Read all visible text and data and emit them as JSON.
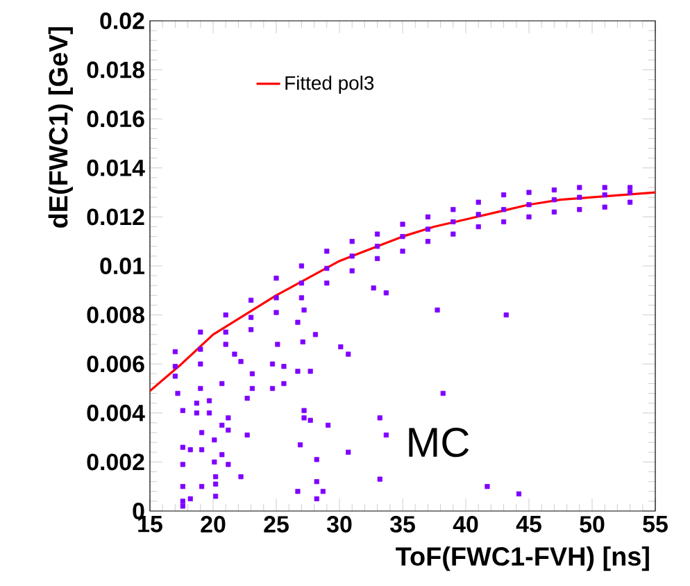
{
  "chart_data": {
    "type": "scatter",
    "xlabel": "ToF(FWC1-FVH) [ns]",
    "ylabel": "dE(FWC1) [GeV]",
    "xlim": [
      15,
      55
    ],
    "ylim": [
      0,
      0.02
    ],
    "xticks": [
      15,
      20,
      25,
      30,
      35,
      40,
      45,
      50,
      55
    ],
    "yticks": [
      0,
      0.002,
      0.004,
      0.006,
      0.008,
      0.01,
      0.012,
      0.014,
      0.016,
      0.018,
      0.02
    ],
    "legend": "top left",
    "annotations": [
      "MC"
    ],
    "series": [
      {
        "color": "#7f00ff",
        "marker": "square",
        "x": [
          17,
          17,
          17,
          19,
          19,
          19,
          21,
          21,
          21,
          23,
          23,
          23,
          25,
          25,
          25,
          27,
          27,
          27,
          29,
          29,
          29,
          31,
          31,
          31,
          33,
          33,
          33,
          35,
          35,
          35,
          37,
          37,
          37,
          39,
          39,
          39,
          41,
          41,
          41,
          43,
          43,
          43,
          45,
          45,
          45,
          47,
          47,
          47,
          49,
          49,
          49,
          51,
          51,
          51,
          53,
          53,
          53,
          37.75,
          43.2,
          33.7,
          32.7,
          27.2,
          26.7,
          28.1,
          27.1,
          25.1,
          30.1,
          30.7,
          24.7,
          25.6,
          26.7,
          27.7,
          23.1,
          22.2,
          21.7,
          25.6,
          24.7,
          23.1,
          20.7,
          19.0,
          38.2,
          17.2,
          18.7,
          19.7,
          22.7,
          17.6,
          18.7,
          19.7,
          21.2,
          20.7,
          21.2,
          27.2,
          27.2,
          27.7,
          29.1,
          33.2,
          33.7,
          19.1,
          20.1,
          22.7,
          17.6,
          18.2,
          19.1,
          20.7,
          17.6,
          20.1,
          21.2,
          26.9,
          30.7,
          28.2,
          22.2,
          33.2,
          20.2,
          17.6,
          19.1,
          20.2,
          28.2,
          26.7,
          28.7,
          41.7,
          44.2,
          17.6,
          18.2,
          17.6,
          20.2,
          28.2
        ],
        "values": [
          0.0055,
          0.0059,
          0.0065,
          0.006,
          0.0066,
          0.0073,
          0.0068,
          0.0073,
          0.008,
          0.0074,
          0.0079,
          0.0086,
          0.0081,
          0.0087,
          0.0095,
          0.0087,
          0.0093,
          0.01,
          0.0093,
          0.0099,
          0.0106,
          0.0098,
          0.0104,
          0.011,
          0.0103,
          0.0108,
          0.0113,
          0.0106,
          0.0112,
          0.0117,
          0.011,
          0.0115,
          0.012,
          0.0113,
          0.0118,
          0.0123,
          0.0116,
          0.0121,
          0.0126,
          0.0118,
          0.0123,
          0.0129,
          0.012,
          0.0125,
          0.013,
          0.0122,
          0.0127,
          0.0131,
          0.0123,
          0.0128,
          0.0132,
          0.0124,
          0.0129,
          0.0132,
          0.0126,
          0.013,
          0.0132,
          0.0082,
          0.008,
          0.0089,
          0.0091,
          0.0082,
          0.0077,
          0.0072,
          0.0069,
          0.0068,
          0.0067,
          0.0064,
          0.006,
          0.0059,
          0.0057,
          0.0057,
          0.0056,
          0.0061,
          0.0064,
          0.0052,
          0.005,
          0.005,
          0.0052,
          0.005,
          0.0048,
          0.0048,
          0.0044,
          0.0045,
          0.0046,
          0.0041,
          0.004,
          0.004,
          0.0038,
          0.0035,
          0.0033,
          0.0041,
          0.0038,
          0.0037,
          0.0035,
          0.0038,
          0.0031,
          0.0032,
          0.0029,
          0.0031,
          0.0026,
          0.0025,
          0.0025,
          0.0023,
          0.0019,
          0.002,
          0.0019,
          0.0027,
          0.0024,
          0.0021,
          0.0014,
          0.0013,
          0.0014,
          0.001,
          0.001,
          0.0011,
          0.0012,
          0.0008,
          0.0008,
          0.001,
          0.0007,
          0.0004,
          0.0005,
          0.0002,
          0.0006,
          0.0005
        ]
      },
      {
        "type": "line",
        "name": "Fitted pol3",
        "color": "#ff0000",
        "x": [
          15,
          17.5,
          20,
          22.5,
          25,
          27.5,
          30,
          32.5,
          35,
          37.5,
          40,
          42.5,
          45,
          47.5,
          50,
          52.5,
          55
        ],
        "values": [
          0.0049,
          0.006,
          0.0072,
          0.008,
          0.0088,
          0.0095,
          0.0102,
          0.0107,
          0.0112,
          0.0116,
          0.0119,
          0.0122,
          0.0125,
          0.0127,
          0.0128,
          0.0129,
          0.013
        ]
      }
    ]
  }
}
